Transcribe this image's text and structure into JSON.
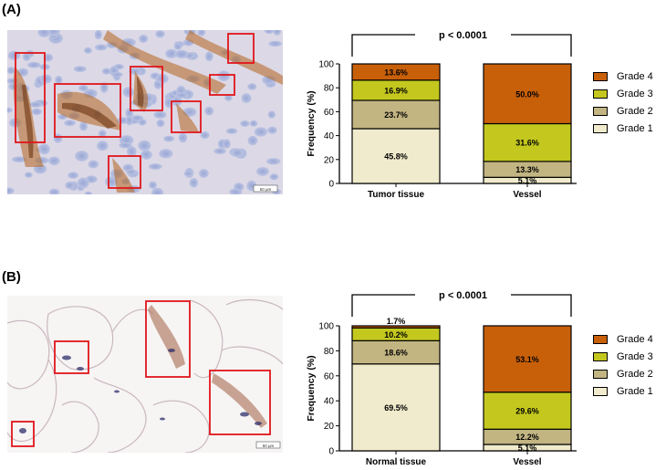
{
  "panels": [
    {
      "label": "(A)",
      "scale_bar_text": "50 µm"
    },
    {
      "label": "(B)",
      "scale_bar_text": "50 µm"
    }
  ],
  "legend": [
    {
      "name": "Grade 4",
      "color": "#c8600a"
    },
    {
      "name": "Grade 3",
      "color": "#c4c81e"
    },
    {
      "name": "Grade 2",
      "color": "#c2b582"
    },
    {
      "name": "Grade 1",
      "color": "#f0ebcc"
    }
  ],
  "chart_data": [
    {
      "type": "bar",
      "stacked": true,
      "categories": [
        "Tumor tissue",
        "Vessel"
      ],
      "ylabel": "Frequency (%)",
      "ylim": [
        0,
        100
      ],
      "yticks": [
        0,
        20,
        40,
        60,
        80,
        100
      ],
      "annotation": "p < 0.0001",
      "series": [
        {
          "name": "Grade 1",
          "values": [
            45.8,
            5.1
          ],
          "labels": [
            "45.8%",
            "5.1%"
          ]
        },
        {
          "name": "Grade 2",
          "values": [
            23.7,
            13.3
          ],
          "labels": [
            "23.7%",
            "13.3%"
          ]
        },
        {
          "name": "Grade 3",
          "values": [
            16.9,
            31.6
          ],
          "labels": [
            "16.9%",
            "31.6%"
          ]
        },
        {
          "name": "Grade 4",
          "values": [
            13.6,
            50.0
          ],
          "labels": [
            "13.6%",
            "50.0%"
          ]
        }
      ],
      "legend_position": "right"
    },
    {
      "type": "bar",
      "stacked": true,
      "categories": [
        "Normal tissue",
        "Vessel"
      ],
      "ylabel": "Frequency (%)",
      "ylim": [
        0,
        100
      ],
      "yticks": [
        0,
        20,
        40,
        60,
        80,
        100
      ],
      "annotation": "p < 0.0001",
      "series": [
        {
          "name": "Grade 1",
          "values": [
            69.5,
            5.1
          ],
          "labels": [
            "69.5%",
            "5.1%"
          ]
        },
        {
          "name": "Grade 2",
          "values": [
            18.6,
            12.2
          ],
          "labels": [
            "18.6%",
            "12.2%"
          ]
        },
        {
          "name": "Grade 3",
          "values": [
            10.2,
            29.6
          ],
          "labels": [
            "10.2%",
            "29.6%"
          ]
        },
        {
          "name": "Grade 4",
          "values": [
            1.7,
            53.1
          ],
          "labels": [
            "1.7%",
            "53.1%"
          ]
        }
      ],
      "legend_position": "right"
    }
  ]
}
